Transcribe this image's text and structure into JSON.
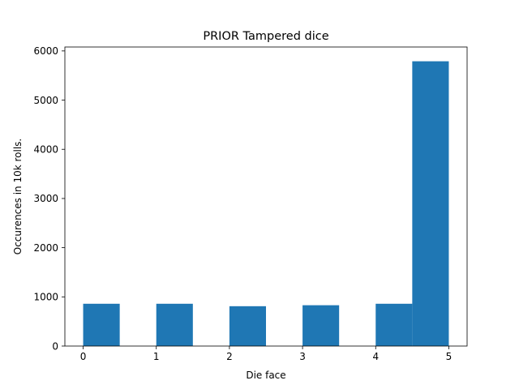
{
  "chart_data": {
    "type": "bar",
    "title": "PRIOR Tampered dice",
    "xlabel": "Die face",
    "ylabel": "Occurences in 10k rolls.",
    "bins": [
      {
        "x_start": 0.0,
        "x_end": 0.5,
        "value": 860
      },
      {
        "x_start": 1.0,
        "x_end": 1.5,
        "value": 860
      },
      {
        "x_start": 2.0,
        "x_end": 2.5,
        "value": 810
      },
      {
        "x_start": 3.0,
        "x_end": 3.5,
        "value": 830
      },
      {
        "x_start": 4.0,
        "x_end": 4.5,
        "value": 860
      },
      {
        "x_start": 4.5,
        "x_end": 5.0,
        "value": 5790
      }
    ],
    "xticks": [
      "0",
      "1",
      "2",
      "3",
      "4",
      "5"
    ],
    "yticks": [
      "0",
      "1000",
      "2000",
      "3000",
      "4000",
      "5000",
      "6000"
    ],
    "xlim": [
      -0.25,
      5.25
    ],
    "ylim": [
      0,
      6080
    ],
    "bar_color": "#1f77b4",
    "grid": false,
    "legend": "none"
  }
}
